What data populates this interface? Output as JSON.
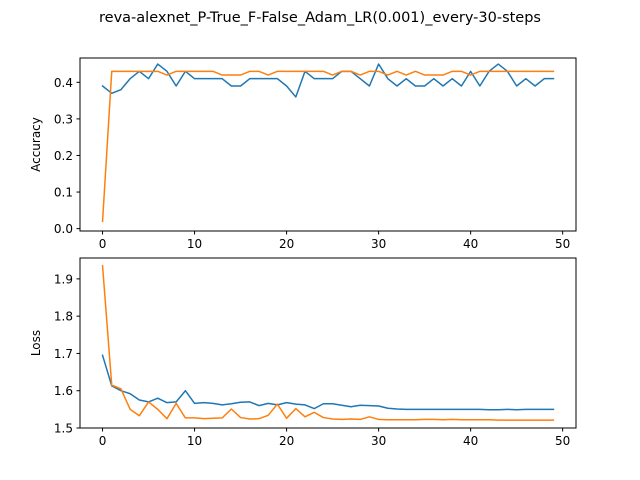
{
  "figure": {
    "suptitle": "reva-alexnet_P-True_F-False_Adam_LR(0.001)_every-30-steps"
  },
  "chart_data": [
    {
      "type": "line",
      "title": "",
      "xlabel": "",
      "ylabel": "Accuracy",
      "xlim": [
        -2.45,
        51.45
      ],
      "ylim": [
        -0.0065,
        0.4665
      ],
      "xticks": [
        0,
        10,
        20,
        30,
        40,
        50
      ],
      "yticks": [
        0.0,
        0.1,
        0.2,
        0.3,
        0.4
      ],
      "ytick_labels": [
        "0.0",
        "0.1",
        "0.2",
        "0.3",
        "0.4"
      ],
      "grid": false,
      "legend": "none",
      "series": [
        {
          "color": "#1f77b4",
          "x": [
            0,
            1,
            2,
            3,
            4,
            5,
            6,
            7,
            8,
            9,
            10,
            11,
            12,
            13,
            14,
            15,
            16,
            17,
            18,
            19,
            20,
            21,
            22,
            23,
            24,
            25,
            26,
            27,
            28,
            29,
            30,
            31,
            32,
            33,
            34,
            35,
            36,
            37,
            38,
            39,
            40,
            41,
            42,
            43,
            44,
            45,
            46,
            47,
            48,
            49
          ],
          "values": [
            0.39,
            0.37,
            0.38,
            0.41,
            0.43,
            0.41,
            0.45,
            0.43,
            0.39,
            0.43,
            0.41,
            0.41,
            0.41,
            0.41,
            0.39,
            0.39,
            0.41,
            0.41,
            0.41,
            0.41,
            0.39,
            0.36,
            0.43,
            0.41,
            0.41,
            0.41,
            0.43,
            0.43,
            0.41,
            0.39,
            0.45,
            0.41,
            0.39,
            0.41,
            0.39,
            0.39,
            0.41,
            0.39,
            0.41,
            0.39,
            0.43,
            0.39,
            0.43,
            0.45,
            0.43,
            0.39,
            0.41,
            0.39,
            0.41,
            0.41
          ]
        },
        {
          "color": "#ff7f0e",
          "x": [
            0,
            1,
            2,
            3,
            4,
            5,
            6,
            7,
            8,
            9,
            10,
            11,
            12,
            13,
            14,
            15,
            16,
            17,
            18,
            19,
            20,
            21,
            22,
            23,
            24,
            25,
            26,
            27,
            28,
            29,
            30,
            31,
            32,
            33,
            34,
            35,
            36,
            37,
            38,
            39,
            40,
            41,
            42,
            43,
            44,
            45,
            46,
            47,
            48,
            49
          ],
          "values": [
            0.02,
            0.43,
            0.43,
            0.43,
            0.43,
            0.43,
            0.43,
            0.42,
            0.43,
            0.43,
            0.43,
            0.43,
            0.43,
            0.42,
            0.42,
            0.42,
            0.43,
            0.43,
            0.42,
            0.43,
            0.43,
            0.43,
            0.43,
            0.43,
            0.43,
            0.42,
            0.43,
            0.43,
            0.42,
            0.43,
            0.43,
            0.42,
            0.43,
            0.42,
            0.43,
            0.42,
            0.42,
            0.42,
            0.43,
            0.43,
            0.42,
            0.43,
            0.43,
            0.43,
            0.43,
            0.43,
            0.43,
            0.43,
            0.43,
            0.43
          ]
        }
      ]
    },
    {
      "type": "line",
      "title": "",
      "xlabel": "",
      "ylabel": "Loss",
      "xlim": [
        -2.45,
        51.45
      ],
      "ylim": [
        1.5,
        1.956
      ],
      "xticks": [
        0,
        10,
        20,
        30,
        40,
        50
      ],
      "yticks": [
        1.5,
        1.6,
        1.7,
        1.8,
        1.9
      ],
      "ytick_labels": [
        "1.5",
        "1.6",
        "1.7",
        "1.8",
        "1.9"
      ],
      "grid": false,
      "legend": "none",
      "series": [
        {
          "color": "#1f77b4",
          "x": [
            0,
            1,
            2,
            3,
            4,
            5,
            6,
            7,
            8,
            9,
            10,
            11,
            12,
            13,
            14,
            15,
            16,
            17,
            18,
            19,
            20,
            21,
            22,
            23,
            24,
            25,
            26,
            27,
            28,
            29,
            30,
            31,
            32,
            33,
            34,
            35,
            36,
            37,
            38,
            39,
            40,
            41,
            42,
            43,
            44,
            45,
            46,
            47,
            48,
            49
          ],
          "values": [
            1.695,
            1.613,
            1.6,
            1.592,
            1.575,
            1.57,
            1.58,
            1.568,
            1.57,
            1.6,
            1.566,
            1.568,
            1.566,
            1.562,
            1.565,
            1.569,
            1.57,
            1.56,
            1.566,
            1.562,
            1.568,
            1.564,
            1.562,
            1.552,
            1.565,
            1.565,
            1.561,
            1.557,
            1.561,
            1.56,
            1.559,
            1.553,
            1.551,
            1.55,
            1.55,
            1.55,
            1.55,
            1.55,
            1.55,
            1.55,
            1.55,
            1.55,
            1.549,
            1.549,
            1.55,
            1.549,
            1.55,
            1.55,
            1.55,
            1.55
          ]
        },
        {
          "color": "#ff7f0e",
          "x": [
            0,
            1,
            2,
            3,
            4,
            5,
            6,
            7,
            8,
            9,
            10,
            11,
            12,
            13,
            14,
            15,
            16,
            17,
            18,
            19,
            20,
            21,
            22,
            23,
            24,
            25,
            26,
            27,
            28,
            29,
            30,
            31,
            32,
            33,
            34,
            35,
            36,
            37,
            38,
            39,
            40,
            41,
            42,
            43,
            44,
            45,
            46,
            47,
            48,
            49
          ],
          "values": [
            1.935,
            1.615,
            1.605,
            1.55,
            1.533,
            1.57,
            1.55,
            1.525,
            1.566,
            1.527,
            1.527,
            1.525,
            1.526,
            1.527,
            1.551,
            1.528,
            1.524,
            1.525,
            1.534,
            1.564,
            1.526,
            1.552,
            1.53,
            1.542,
            1.528,
            1.524,
            1.523,
            1.524,
            1.523,
            1.53,
            1.523,
            1.522,
            1.522,
            1.522,
            1.522,
            1.523,
            1.523,
            1.522,
            1.523,
            1.522,
            1.522,
            1.522,
            1.522,
            1.521,
            1.521,
            1.521,
            1.521,
            1.521,
            1.521,
            1.521
          ]
        }
      ]
    }
  ]
}
